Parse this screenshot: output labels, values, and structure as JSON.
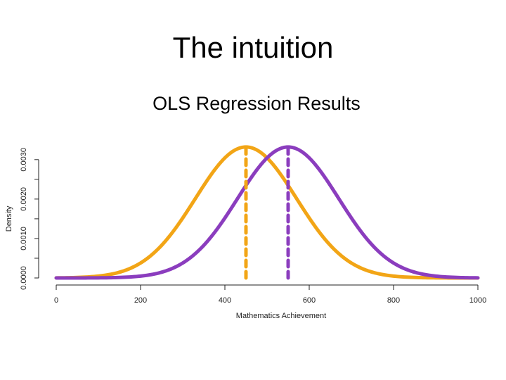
{
  "slide": {
    "title": "The intuition",
    "subtitle": "OLS Regression Results"
  },
  "chart_data": {
    "type": "line",
    "title": "",
    "xlabel": "Mathematics Achievement",
    "ylabel": "Density",
    "xlim": [
      0,
      1000
    ],
    "ylim": [
      0,
      0.0033
    ],
    "x_ticks": [
      "0",
      "200",
      "400",
      "600",
      "800",
      "1000"
    ],
    "y_ticks": [
      "0.0000",
      "0.0010",
      "0.0020",
      "0.0030"
    ],
    "grid": false,
    "legend": "none",
    "series": [
      {
        "mean": 450,
        "sd": 120,
        "color": "#F2A516",
        "peak": 0.00332
      },
      {
        "mean": 550,
        "sd": 120,
        "color": "#8B3DBE",
        "peak": 0.00332
      }
    ],
    "reference_lines": [
      {
        "x": 450,
        "style": "dashed",
        "color": "#F2A516"
      },
      {
        "x": 550,
        "style": "dashed",
        "color": "#8B3DBE"
      }
    ]
  }
}
